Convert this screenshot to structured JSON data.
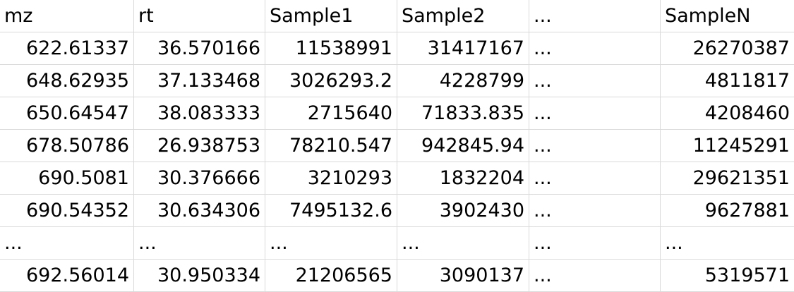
{
  "table": {
    "headers": [
      "mz",
      "rt",
      "Sample1",
      "Sample2",
      "...",
      "SampleN"
    ],
    "rows": [
      [
        "622.61337",
        "36.570166",
        "11538991",
        "31417167",
        "...",
        "26270387"
      ],
      [
        "648.62935",
        "37.133468",
        "3026293.2",
        "4228799",
        "...",
        "4811817"
      ],
      [
        "650.64547",
        "38.083333",
        "2715640",
        "71833.835",
        "...",
        "4208460"
      ],
      [
        "678.50786",
        "26.938753",
        "78210.547",
        "942845.94",
        "...",
        "11245291"
      ],
      [
        "690.5081",
        "30.376666",
        "3210293",
        "1832204",
        "...",
        "29621351"
      ],
      [
        "690.54352",
        "30.634306",
        "7495132.6",
        "3902430",
        "...",
        "9627881"
      ],
      [
        "...",
        "...",
        "...",
        "...",
        "...",
        "..."
      ],
      [
        "692.56014",
        "30.950334",
        "21206565",
        "3090137",
        "...",
        "5319571"
      ]
    ]
  }
}
